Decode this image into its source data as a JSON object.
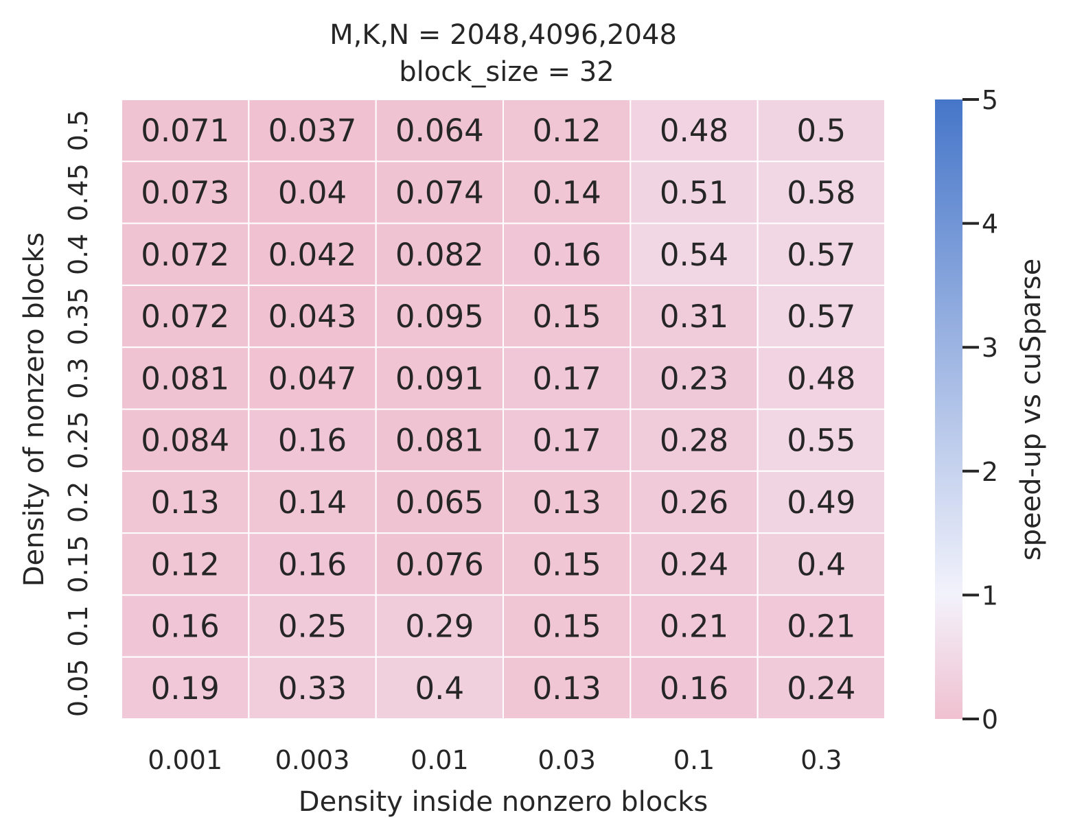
{
  "chart_data": {
    "type": "heatmap",
    "title": "M,K,N = 2048,4096,2048",
    "subtitle": "block_size = 32",
    "xlabel": "Density inside nonzero blocks",
    "ylabel": "Density of nonzero blocks",
    "x_categories": [
      "0.001",
      "0.003",
      "0.01",
      "0.03",
      "0.1",
      "0.3"
    ],
    "y_categories": [
      "0.5",
      "0.45",
      "0.4",
      "0.35",
      "0.3",
      "0.25",
      "0.2",
      "0.15",
      "0.1",
      "0.05"
    ],
    "values": [
      [
        0.071,
        0.037,
        0.064,
        0.12,
        0.48,
        0.5
      ],
      [
        0.073,
        0.04,
        0.074,
        0.14,
        0.51,
        0.58
      ],
      [
        0.072,
        0.042,
        0.082,
        0.16,
        0.54,
        0.57
      ],
      [
        0.072,
        0.043,
        0.095,
        0.15,
        0.31,
        0.57
      ],
      [
        0.081,
        0.047,
        0.091,
        0.17,
        0.23,
        0.48
      ],
      [
        0.084,
        0.16,
        0.081,
        0.17,
        0.28,
        0.55
      ],
      [
        0.13,
        0.14,
        0.065,
        0.13,
        0.26,
        0.49
      ],
      [
        0.12,
        0.16,
        0.076,
        0.15,
        0.24,
        0.4
      ],
      [
        0.16,
        0.25,
        0.29,
        0.15,
        0.21,
        0.21
      ],
      [
        0.19,
        0.33,
        0.4,
        0.13,
        0.16,
        0.24
      ]
    ],
    "colorbar": {
      "label": "speed-up vs cuSparse",
      "range": [
        0,
        5
      ],
      "ticks": [
        "0",
        "1",
        "2",
        "3",
        "4",
        "5"
      ],
      "colors": {
        "low": "#f0c0d0",
        "center": "#f2f2fb",
        "high": "#4676c9"
      },
      "center_value": 1
    },
    "grid": true
  }
}
